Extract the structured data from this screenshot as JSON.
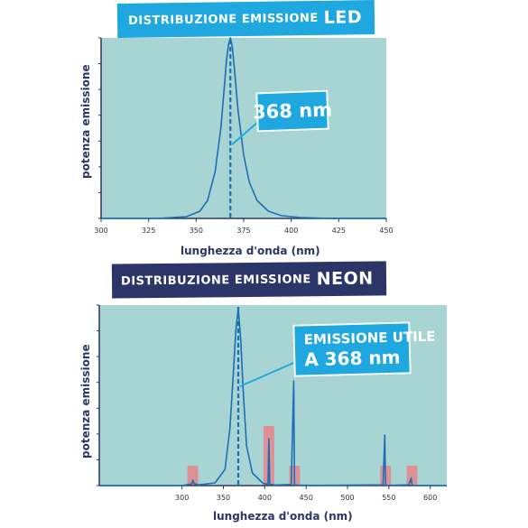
{
  "charts": {
    "led": {
      "title_small": "DISTRIBUZIONE EMISSIONE",
      "title_big": "LED",
      "callout": "368 nm",
      "ylabel": "potenza emissione",
      "xlabel": "lunghezza d'onda (nm)"
    },
    "neon": {
      "title_small": "DISTRIBUZIONE EMISSIONE",
      "title_big": "NEON",
      "callout_line1": "EMISSIONE UTILE",
      "callout_line2": "A 368 nm",
      "ylabel": "potenza emissione",
      "xlabel": "lunghezza d'onda (nm)"
    }
  },
  "colors": {
    "plot_bg": "#a8d5d3",
    "line": "#1b6fb5",
    "peak_marker": "#1b6fb5",
    "highlight": "#e8858a",
    "axis": "#2c3567",
    "led_banner": "#1fa8e0",
    "neon_banner": "#2c3567"
  },
  "chart_data": [
    {
      "type": "line",
      "title": "DISTRIBUZIONE EMISSIONE LED",
      "xlabel": "lunghezza d'onda (nm)",
      "ylabel": "potenza emissione",
      "xlim": [
        300,
        450
      ],
      "xticks": [
        300,
        325,
        350,
        375,
        400,
        425,
        450
      ],
      "ylim": [
        0,
        1
      ],
      "peak_nm": 368,
      "series": [
        {
          "x": [
            300,
            330,
            345,
            352,
            356,
            360,
            363,
            365,
            366,
            367,
            368,
            369,
            370,
            372,
            375,
            378,
            382,
            388,
            395,
            405,
            420,
            450
          ],
          "values": [
            0,
            0,
            0.01,
            0.04,
            0.1,
            0.26,
            0.5,
            0.75,
            0.88,
            0.96,
            1.0,
            0.95,
            0.84,
            0.6,
            0.35,
            0.2,
            0.1,
            0.04,
            0.015,
            0.005,
            0,
            0
          ]
        }
      ],
      "annotations": [
        "368 nm"
      ]
    },
    {
      "type": "line",
      "title": "DISTRIBUZIONE EMISSIONE NEON",
      "xlabel": "lunghezza d'onda (nm)",
      "ylabel": "potenza emissione",
      "xlim": [
        200,
        620
      ],
      "xticks": [
        300,
        350,
        400,
        450,
        500,
        550,
        600
      ],
      "ylim": [
        0,
        1
      ],
      "peak_nm": 368,
      "series": [
        {
          "x": [
            200,
            300,
            312,
            313,
            315,
            320,
            340,
            352,
            358,
            362,
            365,
            368,
            371,
            374,
            378,
            385,
            398,
            404,
            405,
            406,
            412,
            432,
            435,
            436,
            437,
            442,
            460,
            543,
            545,
            546,
            547,
            549,
            574,
            577,
            578,
            579,
            582,
            600,
            620
          ],
          "values": [
            0,
            0,
            0.01,
            0.03,
            0.01,
            0.004,
            0.015,
            0.09,
            0.32,
            0.62,
            0.86,
            0.98,
            0.8,
            0.52,
            0.22,
            0.07,
            0.012,
            0.008,
            0.26,
            0.008,
            0.003,
            0.006,
            0.58,
            0.006,
            0.002,
            0.002,
            0.001,
            0.004,
            0.28,
            0.004,
            0.001,
            0.001,
            0.004,
            0.04,
            0.004,
            0.001,
            0.001,
            0,
            0
          ]
        }
      ],
      "highlight_bands_nm": [
        313,
        405,
        436,
        546,
        578
      ],
      "annotations": [
        "EMISSIONE UTILE",
        "A 368 nm"
      ]
    }
  ]
}
